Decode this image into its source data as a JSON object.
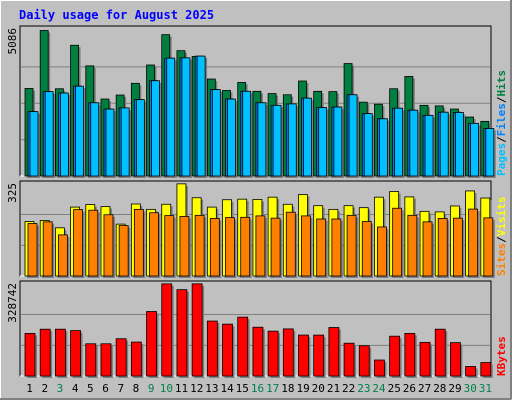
{
  "title": "Daily usage for August 2025",
  "colors": {
    "background": "#c0c0c0",
    "title": "#0000ff",
    "hits": "#008040",
    "files": "#0080ff",
    "pages": "#00c0ff",
    "visits": "#ffff00",
    "sites": "#ff8000",
    "kbytes": "#ff0000",
    "axis": "#000000",
    "weekend_day": "#00804f",
    "weekday": "#000000"
  },
  "chart_data": [
    {
      "type": "bar",
      "title": "Daily usage for August 2025",
      "xlabel": "",
      "ylabel": "Pages / Files / Hits",
      "y_max_label": "5086",
      "ylim": [
        0,
        5086
      ],
      "grid": true,
      "categories": [
        "1",
        "2",
        "3",
        "4",
        "5",
        "6",
        "7",
        "8",
        "9",
        "10",
        "11",
        "12",
        "13",
        "14",
        "15",
        "16",
        "17",
        "18",
        "19",
        "20",
        "21",
        "22",
        "23",
        "24",
        "25",
        "26",
        "27",
        "28",
        "29",
        "30",
        "31"
      ],
      "series": [
        {
          "name": "Hits",
          "values": [
            3060,
            5086,
            3050,
            4570,
            3850,
            2690,
            2830,
            3240,
            3880,
            4940,
            4380,
            4180,
            3390,
            2990,
            3270,
            2960,
            2880,
            2840,
            3320,
            2960,
            2950,
            3930,
            2580,
            2510,
            3050,
            3480,
            2470,
            2450,
            2340,
            2060,
            1910
          ]
        },
        {
          "name": "Files",
          "values": [
            2250,
            2950,
            2900,
            3140,
            2560,
            2340,
            2380,
            2670,
            3330,
            4120,
            4130,
            4190,
            3020,
            2690,
            2960,
            2560,
            2470,
            2520,
            2720,
            2390,
            2410,
            2840,
            2180,
            2000,
            2370,
            2300,
            2120,
            2230,
            2220,
            1840,
            1660
          ]
        },
        {
          "name": "Pages",
          "values": [
            2250,
            2950,
            2900,
            3140,
            2560,
            2340,
            2380,
            2670,
            3330,
            4120,
            4130,
            4190,
            3020,
            2690,
            2960,
            2560,
            2470,
            2520,
            2720,
            2390,
            2410,
            2840,
            2180,
            2000,
            2370,
            2300,
            2120,
            2230,
            2220,
            1840,
            1660
          ]
        }
      ]
    },
    {
      "type": "bar",
      "ylabel": "Sites / Visits",
      "y_max_label": "325",
      "ylim": [
        0,
        325
      ],
      "grid": true,
      "categories": [
        "1",
        "2",
        "3",
        "4",
        "5",
        "6",
        "7",
        "8",
        "9",
        "10",
        "11",
        "12",
        "13",
        "14",
        "15",
        "16",
        "17",
        "18",
        "19",
        "20",
        "21",
        "22",
        "23",
        "24",
        "25",
        "26",
        "27",
        "28",
        "29",
        "30",
        "31"
      ],
      "series": [
        {
          "name": "Visits",
          "values": [
            192,
            196,
            170,
            243,
            252,
            245,
            183,
            254,
            235,
            253,
            325,
            276,
            243,
            269,
            271,
            270,
            278,
            253,
            287,
            248,
            235,
            248,
            241,
            278,
            298,
            279,
            228,
            226,
            247,
            300,
            275
          ]
        },
        {
          "name": "Sites",
          "values": [
            185,
            191,
            145,
            234,
            232,
            216,
            178,
            235,
            223,
            213,
            210,
            214,
            203,
            206,
            207,
            212,
            204,
            225,
            212,
            201,
            201,
            214,
            192,
            173,
            239,
            214,
            191,
            203,
            204,
            236,
            205
          ]
        }
      ]
    },
    {
      "type": "bar",
      "ylabel": "KBytes",
      "y_max_label": "328742",
      "ylim": [
        0,
        328742
      ],
      "grid": true,
      "categories": [
        "1",
        "2",
        "3",
        "4",
        "5",
        "6",
        "7",
        "8",
        "9",
        "10",
        "11",
        "12",
        "13",
        "14",
        "15",
        "16",
        "17",
        "18",
        "19",
        "20",
        "21",
        "22",
        "23",
        "24",
        "25",
        "26",
        "27",
        "28",
        "29",
        "30",
        "31"
      ],
      "series": [
        {
          "name": "KBytes",
          "values": [
            152000,
            167000,
            167000,
            162000,
            115000,
            115000,
            133000,
            121000,
            230000,
            328742,
            308000,
            328742,
            196000,
            185000,
            210000,
            174000,
            160000,
            168000,
            146000,
            146000,
            173000,
            117000,
            108000,
            57000,
            142000,
            152000,
            120000,
            167000,
            119000,
            34000,
            48000
          ]
        }
      ]
    }
  ],
  "legend": {
    "top": [
      {
        "text": "Pages",
        "color": "#00c0ff"
      },
      {
        "text": "/",
        "color": "#000000"
      },
      {
        "text": "Files",
        "color": "#0080ff"
      },
      {
        "text": "/",
        "color": "#000000"
      },
      {
        "text": "Hits",
        "color": "#008040"
      }
    ],
    "middle": [
      {
        "text": "Sites",
        "color": "#ff8000"
      },
      {
        "text": "/",
        "color": "#000000"
      },
      {
        "text": "Visits",
        "color": "#ffff00"
      }
    ],
    "bottom": [
      {
        "text": "KBytes",
        "color": "#ff0000"
      }
    ]
  },
  "weekend_days": [
    3,
    9,
    10,
    16,
    17,
    23,
    24,
    30,
    31
  ]
}
